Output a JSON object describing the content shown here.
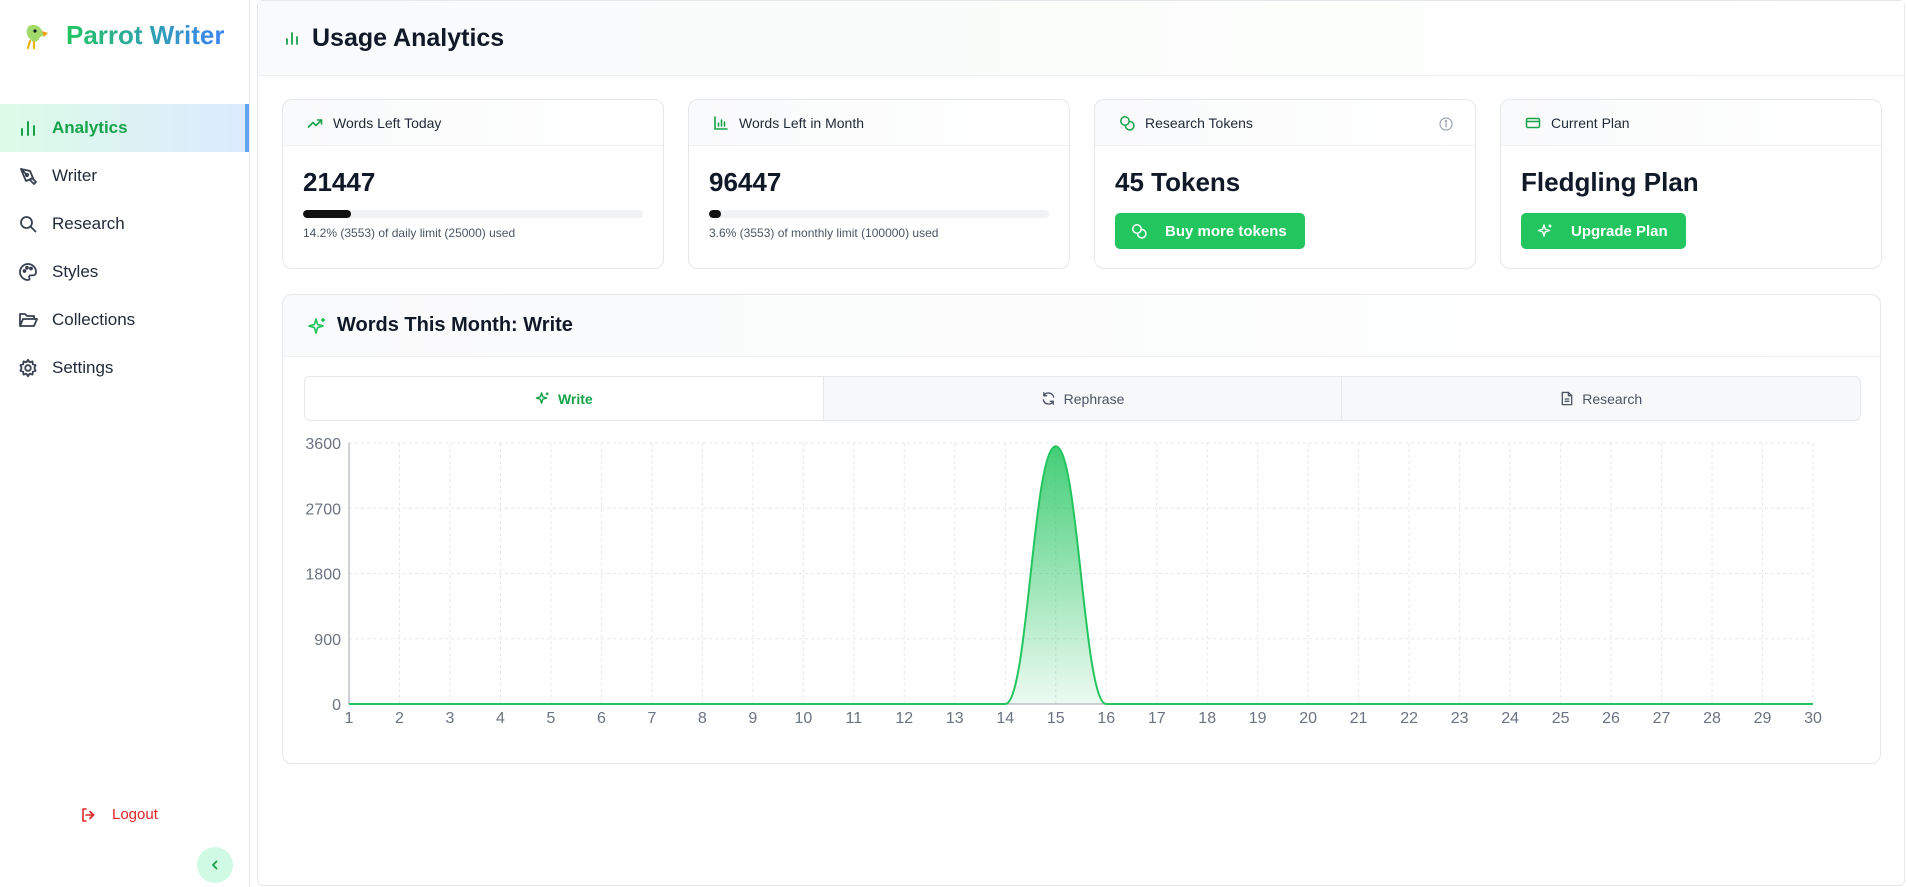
{
  "app": {
    "name": "Parrot Writer"
  },
  "sidebar": {
    "items": [
      {
        "label": "Analytics",
        "icon": "bar-chart-icon",
        "active": true
      },
      {
        "label": "Writer",
        "icon": "pen-tool-icon",
        "active": false
      },
      {
        "label": "Research",
        "icon": "search-icon",
        "active": false
      },
      {
        "label": "Styles",
        "icon": "palette-icon",
        "active": false
      },
      {
        "label": "Collections",
        "icon": "folder-open-icon",
        "active": false
      },
      {
        "label": "Settings",
        "icon": "gear-icon",
        "active": false
      }
    ],
    "logout_label": "Logout"
  },
  "header": {
    "title": "Usage Analytics"
  },
  "cards": {
    "daily": {
      "title": "Words Left Today",
      "value": "21447",
      "progress_percent": 14.2,
      "subtitle": "14.2% (3553) of daily limit (25000) used"
    },
    "monthly": {
      "title": "Words Left in Month",
      "value": "96447",
      "progress_percent": 3.6,
      "subtitle": "3.6% (3553) of monthly limit (100000) used"
    },
    "tokens": {
      "title": "Research Tokens",
      "value": "45 Tokens",
      "button_label": "Buy more tokens"
    },
    "plan": {
      "title": "Current Plan",
      "value": "Fledgling Plan",
      "button_label": "Upgrade Plan"
    }
  },
  "usage_chart": {
    "title": "Words This Month: Write",
    "tabs": [
      {
        "label": "Write",
        "active": true
      },
      {
        "label": "Rephrase",
        "active": false
      },
      {
        "label": "Research",
        "active": false
      }
    ]
  },
  "colors": {
    "accent": "#22c55e",
    "accent_dark": "#16a34a",
    "danger": "#dc2626",
    "gradient_end": "#3b82f6"
  },
  "chart_data": {
    "type": "area",
    "x": [
      1,
      2,
      3,
      4,
      5,
      6,
      7,
      8,
      9,
      10,
      11,
      12,
      13,
      14,
      15,
      16,
      17,
      18,
      19,
      20,
      21,
      22,
      23,
      24,
      25,
      26,
      27,
      28,
      29,
      30
    ],
    "series": [
      {
        "values": [
          0,
          0,
          0,
          0,
          0,
          0,
          0,
          0,
          0,
          0,
          0,
          0,
          0,
          0,
          3553,
          0,
          0,
          0,
          0,
          0,
          0,
          0,
          0,
          0,
          0,
          0,
          0,
          0,
          0,
          0
        ]
      }
    ],
    "ylim": [
      0,
      3600
    ],
    "yticks": [
      0,
      900,
      1800,
      2700,
      3600
    ],
    "grid": true
  }
}
